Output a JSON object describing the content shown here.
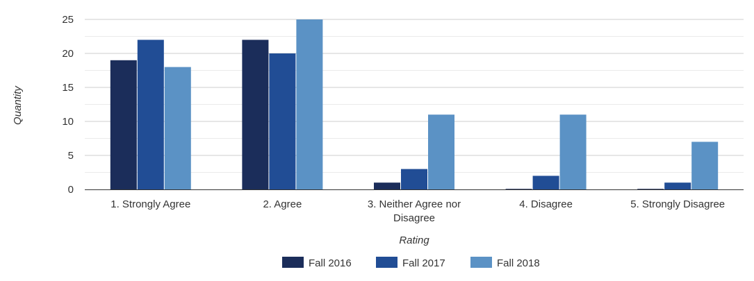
{
  "chart_data": {
    "type": "bar",
    "title": "",
    "xlabel": "Rating",
    "ylabel": "Quantity",
    "ylim": [
      0,
      25
    ],
    "yticks": [
      0,
      5,
      10,
      15,
      20,
      25
    ],
    "grid": true,
    "legend_position": "bottom",
    "categories": [
      [
        "1. Strongly Agree"
      ],
      [
        "2. Agree"
      ],
      [
        "3. Neither Agree nor",
        "Disagree"
      ],
      [
        "4. Disagree"
      ],
      [
        "5. Strongly Disagree"
      ]
    ],
    "series": [
      {
        "name": "Fall 2016",
        "color": "#1b2d5a",
        "values": [
          19,
          22,
          1,
          0,
          0
        ]
      },
      {
        "name": "Fall 2017",
        "color": "#214d95",
        "values": [
          22,
          20,
          3,
          2,
          1
        ]
      },
      {
        "name": "Fall 2018",
        "color": "#5b92c5",
        "values": [
          18,
          25,
          11,
          11,
          7
        ]
      }
    ]
  }
}
